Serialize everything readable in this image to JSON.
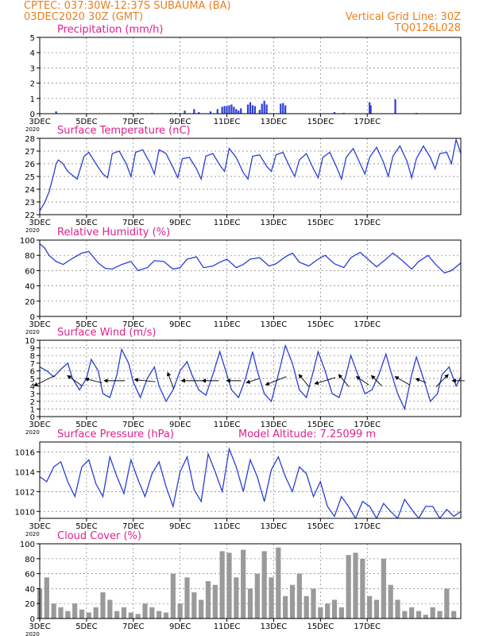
{
  "header": {
    "line1": "CPTEC:  037:30W-12:37S  SUBAUMA (BA)",
    "line2": "03DEC2020 30Z (GMT)",
    "grid_note": "Vertical Grid Line: 30Z",
    "code": "TQ0126L028"
  },
  "colors": {
    "header": "#e8801e",
    "title": "#e0208c",
    "series": "#2a3fd6",
    "cloud": "#9a9a9a",
    "grid": "#7a7a7a"
  },
  "x_ticks": [
    "3DEC",
    "5DEC",
    "7DEC",
    "9DEC",
    "11DEC",
    "13DEC",
    "15DEC",
    "17DEC"
  ],
  "x_tail_label": "2020",
  "chart_data": [
    {
      "id": "precip",
      "type": "bar",
      "title": "Precipitation (mm/h)",
      "ylim": [
        0,
        5
      ],
      "yticks": [
        0,
        1,
        2,
        3,
        4,
        5
      ],
      "grid": true,
      "x": [
        0.7,
        3.9,
        4.2,
        4.8,
        5.6,
        5.8,
        6.2,
        6.6,
        6.8,
        7.3,
        7.6,
        7.8,
        7.9,
        8.0,
        8.1,
        8.2,
        8.3,
        8.4,
        8.5,
        8.6,
        8.9,
        9.0,
        9.1,
        9.2,
        9.4,
        9.5,
        9.6,
        9.7,
        10.3,
        10.4,
        10.5,
        12.6,
        13.0,
        14.1,
        14.15,
        15.2,
        16.1
      ],
      "values": [
        0.15,
        0.05,
        0.05,
        0.05,
        0.05,
        0.05,
        0.2,
        0.3,
        0.1,
        0.15,
        0.3,
        0.45,
        0.5,
        0.5,
        0.55,
        0.6,
        0.45,
        0.3,
        0.2,
        0.35,
        0.6,
        0.75,
        0.55,
        0.5,
        0.25,
        0.65,
        0.85,
        0.6,
        0.65,
        0.7,
        0.55,
        0.1,
        0.05,
        0.75,
        0.55,
        0.95,
        0.05
      ]
    },
    {
      "id": "temp",
      "type": "line",
      "title": "Surface Temperature (nC)",
      "ylim": [
        22,
        28
      ],
      "yticks": [
        22,
        23,
        24,
        25,
        26,
        27,
        28
      ],
      "grid": true,
      "x": [
        0.0,
        0.2,
        0.4,
        0.6,
        0.7,
        0.8,
        1.0,
        1.2,
        1.6,
        1.9,
        2.1,
        2.4,
        2.7,
        2.9,
        3.1,
        3.4,
        3.7,
        3.9,
        4.1,
        4.4,
        4.7,
        4.9,
        5.1,
        5.4,
        5.7,
        5.9,
        6.1,
        6.4,
        6.7,
        6.9,
        7.1,
        7.4,
        7.7,
        7.9,
        8.1,
        8.4,
        8.7,
        8.9,
        9.1,
        9.4,
        9.7,
        9.9,
        10.1,
        10.4,
        10.7,
        10.9,
        11.1,
        11.4,
        11.7,
        11.9,
        12.1,
        12.4,
        12.7,
        12.9,
        13.1,
        13.4,
        13.7,
        13.9,
        14.1,
        14.4,
        14.7,
        14.9,
        15.1,
        15.4,
        15.7,
        15.9,
        16.1,
        16.4,
        16.7,
        16.9,
        17.1,
        17.4,
        17.6,
        17.8,
        18.0
      ],
      "values": [
        22.3,
        22.9,
        23.8,
        25.2,
        26.0,
        26.3,
        26.0,
        25.4,
        24.8,
        26.6,
        26.9,
        26.0,
        25.2,
        24.9,
        26.8,
        27.0,
        26.0,
        25.0,
        26.9,
        27.1,
        26.1,
        25.2,
        27.1,
        26.8,
        25.7,
        24.9,
        26.4,
        26.5,
        25.6,
        24.8,
        26.6,
        26.8,
        25.9,
        25.4,
        27.2,
        26.5,
        25.3,
        24.8,
        26.6,
        26.7,
        25.8,
        25.4,
        26.7,
        26.9,
        25.7,
        25.0,
        26.3,
        26.8,
        25.6,
        24.9,
        26.5,
        26.9,
        25.7,
        24.8,
        26.5,
        27.2,
        26.0,
        25.2,
        26.5,
        27.3,
        26.1,
        25.0,
        26.6,
        27.4,
        26.2,
        24.9,
        26.4,
        27.4,
        26.5,
        25.6,
        26.8,
        26.9,
        26.0,
        27.9,
        26.8
      ]
    },
    {
      "id": "rh",
      "type": "line",
      "title": "Relative Humidity (%)",
      "ylim": [
        0,
        100
      ],
      "yticks": [
        0,
        20,
        40,
        60,
        80,
        100
      ],
      "grid": true,
      "x": [
        0.0,
        0.2,
        0.4,
        0.7,
        1.0,
        1.4,
        1.8,
        2.1,
        2.5,
        2.8,
        3.1,
        3.5,
        3.9,
        4.2,
        4.6,
        4.9,
        5.3,
        5.7,
        6.0,
        6.3,
        6.7,
        7.0,
        7.4,
        7.7,
        8.0,
        8.4,
        8.7,
        9.0,
        9.4,
        9.8,
        10.1,
        10.5,
        10.8,
        11.1,
        11.5,
        11.9,
        12.2,
        12.6,
        13.0,
        13.3,
        13.7,
        14.1,
        14.4,
        14.8,
        15.1,
        15.5,
        15.9,
        16.2,
        16.6,
        16.9,
        17.3,
        17.6,
        18.0
      ],
      "values": [
        95,
        90,
        80,
        72,
        68,
        76,
        83,
        85,
        70,
        63,
        62,
        68,
        72,
        60,
        64,
        73,
        72,
        62,
        64,
        75,
        78,
        64,
        66,
        71,
        75,
        64,
        68,
        75,
        77,
        66,
        69,
        78,
        83,
        71,
        66,
        75,
        80,
        69,
        64,
        77,
        84,
        73,
        65,
        75,
        83,
        73,
        62,
        72,
        80,
        69,
        57,
        60,
        70
      ]
    },
    {
      "id": "wind",
      "type": "line",
      "title": "Surface Wind (m/s)",
      "ylim": [
        0,
        10
      ],
      "yticks": [
        0,
        1,
        2,
        3,
        4,
        5,
        6,
        7,
        8,
        9,
        10
      ],
      "grid": true,
      "x": [
        0.0,
        0.3,
        0.6,
        0.9,
        1.2,
        1.4,
        1.7,
        2.0,
        2.2,
        2.5,
        2.7,
        3.0,
        3.3,
        3.5,
        3.8,
        4.0,
        4.3,
        4.6,
        4.9,
        5.1,
        5.4,
        5.7,
        6.0,
        6.3,
        6.5,
        6.8,
        7.1,
        7.4,
        7.7,
        7.9,
        8.2,
        8.5,
        8.8,
        9.1,
        9.3,
        9.6,
        9.9,
        10.2,
        10.5,
        10.8,
        11.1,
        11.4,
        11.7,
        11.9,
        12.2,
        12.5,
        12.8,
        13.1,
        13.3,
        13.6,
        13.9,
        14.2,
        14.5,
        14.8,
        15.0,
        15.3,
        15.6,
        15.9,
        16.1,
        16.4,
        16.7,
        17.0,
        17.2,
        17.5,
        17.8,
        18.0
      ],
      "values": [
        6.5,
        6.0,
        5.2,
        6.2,
        7.0,
        5.0,
        3.5,
        5.0,
        7.5,
        6.0,
        3.0,
        2.5,
        5.5,
        8.8,
        7.0,
        4.5,
        2.5,
        5.0,
        6.5,
        4.0,
        2.0,
        3.5,
        6.0,
        7.2,
        5.5,
        3.5,
        2.8,
        5.5,
        8.5,
        6.5,
        3.5,
        2.5,
        5.0,
        8.5,
        6.0,
        3.0,
        2.0,
        5.5,
        9.3,
        7.0,
        3.5,
        2.5,
        6.0,
        8.5,
        6.0,
        3.0,
        2.5,
        5.5,
        8.0,
        5.5,
        3.0,
        3.5,
        5.5,
        8.2,
        6.0,
        3.0,
        1.0,
        5.5,
        7.8,
        5.0,
        2.0,
        3.0,
        5.5,
        6.5,
        4.0,
        5.2
      ],
      "arrows": [
        {
          "x": 0.2,
          "u": -1.0,
          "v": -0.5
        },
        {
          "x": 1.5,
          "u": -0.7,
          "v": 0.5
        },
        {
          "x": 2.3,
          "u": -0.8,
          "v": 0.2
        },
        {
          "x": 3.2,
          "u": -1.0,
          "v": 0.0
        },
        {
          "x": 4.5,
          "u": -1.0,
          "v": 0.1
        },
        {
          "x": 5.6,
          "u": -0.3,
          "v": 0.8
        },
        {
          "x": 6.5,
          "u": -1.0,
          "v": 0.0
        },
        {
          "x": 7.3,
          "u": -0.8,
          "v": 0.0
        },
        {
          "x": 8.3,
          "u": -0.7,
          "v": 0.0
        },
        {
          "x": 9.1,
          "u": -0.6,
          "v": -0.2
        },
        {
          "x": 10.1,
          "u": -1.0,
          "v": -0.4
        },
        {
          "x": 11.3,
          "u": -0.5,
          "v": 0.6
        },
        {
          "x": 12.2,
          "u": -1.0,
          "v": -0.3
        },
        {
          "x": 13.0,
          "u": -0.5,
          "v": 0.6
        },
        {
          "x": 13.8,
          "u": -0.6,
          "v": 0.4
        },
        {
          "x": 14.4,
          "u": -0.5,
          "v": 0.5
        },
        {
          "x": 15.5,
          "u": -0.7,
          "v": 0.4
        },
        {
          "x": 16.3,
          "u": -0.5,
          "v": 0.2
        },
        {
          "x": 17.2,
          "u": 0.6,
          "v": 0.6
        },
        {
          "x": 17.9,
          "u": -0.6,
          "v": 0.0
        }
      ]
    },
    {
      "id": "pressure",
      "type": "line",
      "title": "Surface Pressure (hPa)",
      "annotation": "Model Altitude: 7.25099 m",
      "ylim": [
        1009.3,
        1017.0
      ],
      "yticks": [
        1010,
        1012,
        1014,
        1016
      ],
      "grid": true,
      "x": [
        0.0,
        0.3,
        0.6,
        0.9,
        1.2,
        1.5,
        1.8,
        2.1,
        2.4,
        2.7,
        3.0,
        3.3,
        3.6,
        3.9,
        4.2,
        4.5,
        4.8,
        5.1,
        5.4,
        5.7,
        6.0,
        6.3,
        6.6,
        6.9,
        7.2,
        7.5,
        7.8,
        8.1,
        8.4,
        8.7,
        9.0,
        9.3,
        9.6,
        9.9,
        10.2,
        10.5,
        10.8,
        11.1,
        11.4,
        11.7,
        12.0,
        12.3,
        12.6,
        12.9,
        13.2,
        13.5,
        13.8,
        14.1,
        14.4,
        14.7,
        15.0,
        15.3,
        15.6,
        15.9,
        16.2,
        16.5,
        16.8,
        17.1,
        17.4,
        17.7,
        18.0
      ],
      "values": [
        1013.5,
        1013.0,
        1014.5,
        1015.0,
        1013.0,
        1011.5,
        1014.5,
        1015.2,
        1012.8,
        1011.5,
        1015.5,
        1013.5,
        1011.8,
        1015.2,
        1013.2,
        1011.5,
        1013.8,
        1015.0,
        1012.5,
        1010.5,
        1014.0,
        1015.5,
        1012.2,
        1011.0,
        1015.8,
        1014.0,
        1012.0,
        1016.3,
        1014.5,
        1012.0,
        1015.2,
        1013.5,
        1011.0,
        1014.2,
        1015.5,
        1013.5,
        1012.0,
        1014.5,
        1013.8,
        1011.5,
        1013.0,
        1010.5,
        1009.5,
        1011.5,
        1010.5,
        1009.3,
        1011.0,
        1010.5,
        1009.3,
        1010.8,
        1010.0,
        1009.3,
        1011.2,
        1010.2,
        1009.3,
        1010.5,
        1010.5,
        1009.3,
        1010.2,
        1009.5,
        1010.0
      ]
    },
    {
      "id": "cloud",
      "type": "bar",
      "title": "Cloud Cover (%)",
      "ylim": [
        0,
        100
      ],
      "yticks": [
        0,
        20,
        40,
        60,
        80,
        100
      ],
      "grid": true,
      "x": [
        0.0,
        0.3,
        0.6,
        0.9,
        1.2,
        1.5,
        1.8,
        2.1,
        2.4,
        2.7,
        3.0,
        3.3,
        3.6,
        3.9,
        4.2,
        4.5,
        4.8,
        5.1,
        5.4,
        5.7,
        6.0,
        6.3,
        6.6,
        6.9,
        7.2,
        7.5,
        7.8,
        8.1,
        8.4,
        8.7,
        9.0,
        9.3,
        9.6,
        9.9,
        10.2,
        10.5,
        10.8,
        11.1,
        11.4,
        11.7,
        12.0,
        12.3,
        12.6,
        12.9,
        13.2,
        13.5,
        13.8,
        14.1,
        14.4,
        14.7,
        15.0,
        15.3,
        15.6,
        15.9,
        16.2,
        16.5,
        16.8,
        17.1,
        17.4,
        17.7
      ],
      "values": [
        40,
        55,
        20,
        15,
        10,
        20,
        12,
        8,
        15,
        35,
        25,
        10,
        15,
        8,
        6,
        20,
        15,
        10,
        8,
        60,
        20,
        55,
        35,
        25,
        50,
        45,
        90,
        88,
        55,
        92,
        40,
        60,
        90,
        55,
        95,
        30,
        45,
        60,
        30,
        40,
        15,
        20,
        25,
        15,
        85,
        88,
        80,
        30,
        25,
        80,
        45,
        25,
        10,
        15,
        10,
        5,
        15,
        10,
        40,
        10
      ]
    }
  ]
}
